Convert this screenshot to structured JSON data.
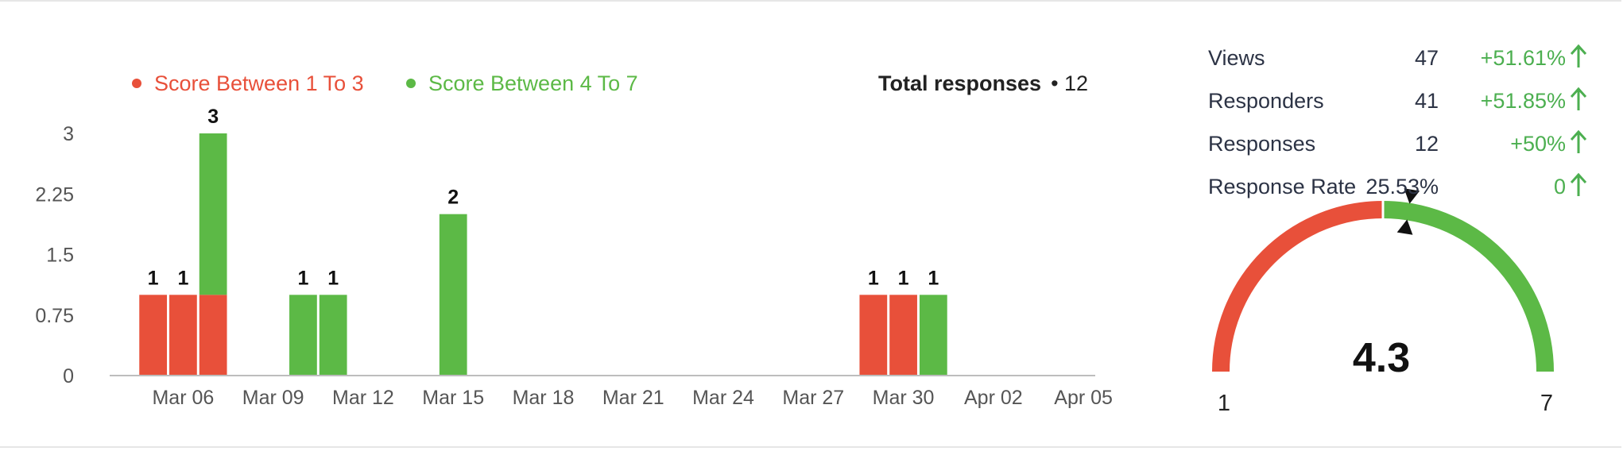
{
  "chart_data": {
    "type": "bar",
    "stacked": true,
    "x": [
      "2024-03-05",
      "2024-03-06",
      "2024-03-07",
      "2024-03-10",
      "2024-03-11",
      "2024-03-15",
      "2024-03-29",
      "2024-03-30",
      "2024-03-31"
    ],
    "series": [
      {
        "name": "Score Between 1 To 3",
        "color": "#e8503a",
        "values": [
          1,
          1,
          1,
          0,
          0,
          0,
          1,
          1,
          0
        ]
      },
      {
        "name": "Score Between 4 To 7",
        "color": "#5cb946",
        "values": [
          0,
          0,
          2,
          1,
          1,
          2,
          0,
          0,
          1
        ]
      }
    ],
    "totals": [
      "1",
      "1",
      "3",
      "1",
      "1",
      "2",
      "1",
      "1",
      "1"
    ],
    "x_tick_labels": [
      "Mar 06",
      "Mar 09",
      "Mar 12",
      "Mar 15",
      "Mar 18",
      "Mar 21",
      "Mar 24",
      "Mar 27",
      "Mar 30",
      "Apr 02",
      "Apr 05"
    ],
    "x_tick_dates": [
      "2024-03-06",
      "2024-03-09",
      "2024-03-12",
      "2024-03-15",
      "2024-03-18",
      "2024-03-21",
      "2024-03-24",
      "2024-03-27",
      "2024-03-30",
      "2024-04-02",
      "2024-04-05"
    ],
    "y_tick_labels": [
      "0",
      "0.75",
      "1.5",
      "2.25",
      "3"
    ],
    "y_tick_values": [
      0,
      0.75,
      1.5,
      2.25,
      3
    ],
    "ylim": [
      0,
      3
    ],
    "xlim": [
      "2024-03-04",
      "2024-04-06"
    ],
    "grid": false,
    "legend_position": "top-left",
    "title": "",
    "xlabel": "",
    "ylabel": ""
  },
  "total_responses": {
    "label": "Total responses",
    "value": "• 12"
  },
  "stats": [
    {
      "name": "Views",
      "value": "47",
      "change": "+51.61%"
    },
    {
      "name": "Responders",
      "value": "41",
      "change": "+51.85%"
    },
    {
      "name": "Responses",
      "value": "12",
      "change": "+50%"
    },
    {
      "name": "Response Rate",
      "value": "25.53%",
      "change": "0"
    }
  ],
  "stats_change_icon": "arrow-up-icon",
  "gauge": {
    "value": 4.3,
    "value_label": "4.3",
    "min": 1,
    "max": 7,
    "min_label": "1",
    "max_label": "7",
    "split": 4,
    "low_color": "#e8503a",
    "high_color": "#5cb946",
    "pointer_icon": "triangle-pointer-icon"
  }
}
